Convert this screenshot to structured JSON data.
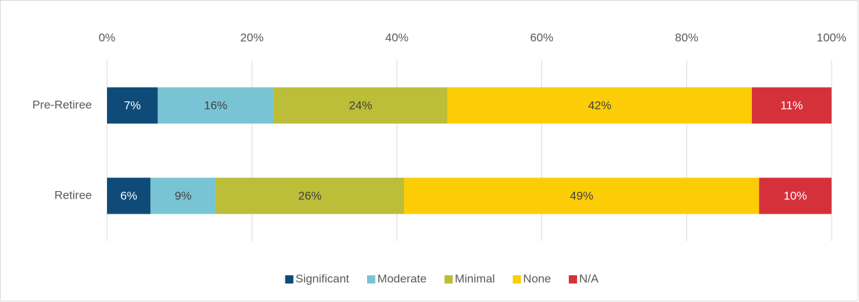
{
  "chart_data": {
    "type": "stacked-bar-horizontal",
    "categories": [
      "Pre-Retiree",
      "Retiree"
    ],
    "series": [
      {
        "name": "Significant",
        "color": "#0e4b78",
        "values": [
          7,
          6
        ],
        "value_labels": [
          "7%",
          "6%"
        ]
      },
      {
        "name": "Moderate",
        "color": "#79c4d4",
        "values": [
          16,
          9
        ],
        "value_labels": [
          "16%",
          "9%"
        ]
      },
      {
        "name": "Minimal",
        "color": "#bcbd38",
        "values": [
          24,
          26
        ],
        "value_labels": [
          "24%",
          "26%"
        ]
      },
      {
        "name": "None",
        "color": "#fccd06",
        "values": [
          42,
          49
        ],
        "value_labels": [
          "42%",
          "49%"
        ]
      },
      {
        "name": "N/A",
        "color": "#d5313b",
        "values": [
          11,
          10
        ],
        "value_labels": [
          "11%",
          "10%"
        ]
      }
    ],
    "xlim": [
      0,
      100
    ],
    "xticks": [
      {
        "value": 0,
        "label": "0%"
      },
      {
        "value": 20,
        "label": "20%"
      },
      {
        "value": 40,
        "label": "40%"
      },
      {
        "value": 60,
        "label": "60%"
      },
      {
        "value": 80,
        "label": "80%"
      },
      {
        "value": 100,
        "label": "100%"
      }
    ],
    "grid": true,
    "legend": "bottom"
  }
}
